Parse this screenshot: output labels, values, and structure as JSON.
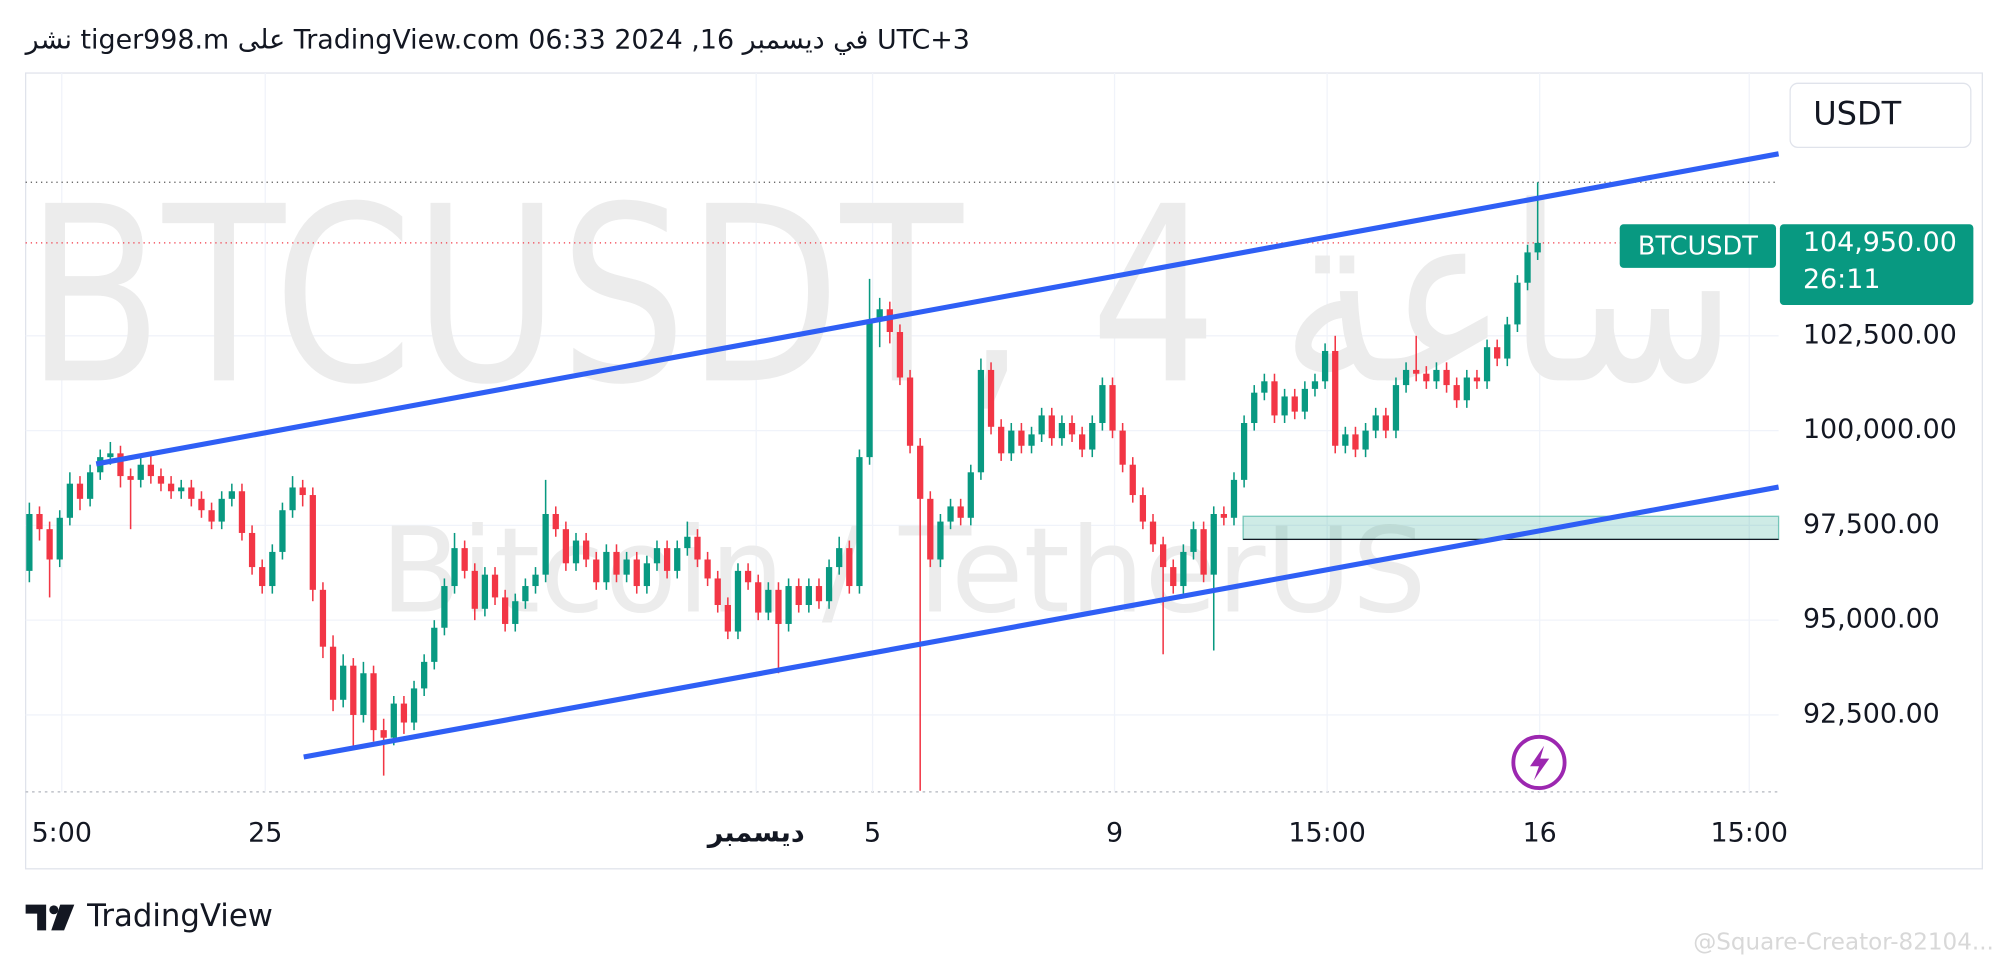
{
  "header": "نشر tiger998.m على TradingView.com في ديسمبر 16, 2024 06:33 UTC+3",
  "chart_data": {
    "type": "candlestick",
    "watermark_title": "BTCUSDT, 4 ساعة",
    "watermark_subtitle": "Bitcoin / TetherUS",
    "currency": "USDT",
    "symbol": "BTCUSDT",
    "price_label": "104,950.00",
    "countdown": "26:11",
    "up_color": "#089981",
    "down_color": "#f23645",
    "xlim": [
      -0.37,
      172.8
    ],
    "xticks": [
      {
        "value": 3.2,
        "label": "5:00"
      },
      {
        "value": 23.3,
        "label": "25"
      },
      {
        "value": 71.8,
        "label": "ديسمبر"
      },
      {
        "value": 83.3,
        "label": "5"
      },
      {
        "value": 107.2,
        "label": "9"
      },
      {
        "value": 128.2,
        "label": "15:00"
      },
      {
        "value": 149.2,
        "label": "16"
      },
      {
        "value": 169.9,
        "label": "15:00"
      }
    ],
    "ylim": [
      90470,
      109430
    ],
    "yticks": [
      {
        "value": 92500,
        "label": "92,500.00"
      },
      {
        "value": 95000,
        "label": "95,000.00"
      },
      {
        "value": 97500,
        "label": "97,500.00"
      },
      {
        "value": 100000,
        "label": "100,000.00"
      },
      {
        "value": 102500,
        "label": "102,500.00"
      }
    ],
    "grid": true,
    "trendlines": [
      {
        "x": [
          6.6,
          172.8
        ],
        "y": [
          99120,
          107300
        ],
        "color": "#2f5ff5"
      },
      {
        "x": [
          27.1,
          172.8
        ],
        "y": [
          91390,
          98510
        ],
        "color": "#2f5ff5"
      }
    ],
    "zone": {
      "x": [
        119.9,
        172.8
      ],
      "y": [
        97130,
        97740
      ],
      "color": "#089981"
    },
    "ohlc": [
      [
        96300,
        98100,
        96000,
        97800
      ],
      [
        97800,
        98000,
        97100,
        97400
      ],
      [
        97400,
        97600,
        95600,
        96600
      ],
      [
        96600,
        97900,
        96400,
        97700
      ],
      [
        97700,
        98900,
        97500,
        98600
      ],
      [
        98600,
        98800,
        97900,
        98200
      ],
      [
        98200,
        99100,
        98000,
        98900
      ],
      [
        98900,
        99500,
        98700,
        99300
      ],
      [
        99300,
        99700,
        99100,
        99400
      ],
      [
        99400,
        99600,
        98500,
        98800
      ],
      [
        98800,
        99000,
        97400,
        98700
      ],
      [
        98700,
        99300,
        98500,
        99100
      ],
      [
        99100,
        99400,
        98600,
        98800
      ],
      [
        98800,
        99000,
        98400,
        98600
      ],
      [
        98600,
        98800,
        98200,
        98400
      ],
      [
        98400,
        98700,
        98200,
        98500
      ],
      [
        98500,
        98700,
        98000,
        98200
      ],
      [
        98200,
        98400,
        97700,
        97900
      ],
      [
        97900,
        98100,
        97400,
        97600
      ],
      [
        97600,
        98400,
        97400,
        98200
      ],
      [
        98200,
        98600,
        98000,
        98400
      ],
      [
        98400,
        98600,
        97100,
        97300
      ],
      [
        97300,
        97500,
        96200,
        96400
      ],
      [
        96400,
        96600,
        95700,
        95900
      ],
      [
        95900,
        97000,
        95700,
        96800
      ],
      [
        96800,
        98100,
        96600,
        97900
      ],
      [
        97900,
        98800,
        97700,
        98500
      ],
      [
        98500,
        98700,
        98000,
        98300
      ],
      [
        98300,
        98500,
        95500,
        95800
      ],
      [
        95800,
        96000,
        94000,
        94300
      ],
      [
        94300,
        94600,
        92600,
        92900
      ],
      [
        92900,
        94100,
        92700,
        93800
      ],
      [
        93800,
        94000,
        91600,
        92500
      ],
      [
        92500,
        93900,
        92300,
        93600
      ],
      [
        93600,
        93800,
        91800,
        92100
      ],
      [
        92100,
        92400,
        90900,
        91900
      ],
      [
        91900,
        93000,
        91700,
        92800
      ],
      [
        92800,
        93000,
        92000,
        92300
      ],
      [
        92300,
        93400,
        92100,
        93200
      ],
      [
        93200,
        94100,
        93000,
        93900
      ],
      [
        93900,
        95000,
        93700,
        94800
      ],
      [
        94800,
        96100,
        94600,
        95900
      ],
      [
        95900,
        97300,
        95700,
        96900
      ],
      [
        96900,
        97100,
        96100,
        96300
      ],
      [
        96300,
        96500,
        95000,
        95300
      ],
      [
        95300,
        96400,
        95100,
        96200
      ],
      [
        96200,
        96400,
        95400,
        95600
      ],
      [
        95600,
        95800,
        94700,
        94900
      ],
      [
        94900,
        95700,
        94700,
        95500
      ],
      [
        95500,
        96100,
        95300,
        95900
      ],
      [
        95900,
        96400,
        95700,
        96200
      ],
      [
        96200,
        98700,
        96000,
        97800
      ],
      [
        97800,
        98000,
        97200,
        97400
      ],
      [
        97400,
        97600,
        96300,
        96500
      ],
      [
        96500,
        97300,
        96300,
        97100
      ],
      [
        97100,
        97300,
        96400,
        96600
      ],
      [
        96600,
        96800,
        95800,
        96000
      ],
      [
        96000,
        97000,
        95800,
        96800
      ],
      [
        96800,
        97000,
        96000,
        96200
      ],
      [
        96200,
        96800,
        96000,
        96600
      ],
      [
        96600,
        96800,
        95700,
        95900
      ],
      [
        95900,
        96700,
        95700,
        96500
      ],
      [
        96500,
        97100,
        96300,
        96900
      ],
      [
        96900,
        97100,
        96100,
        96300
      ],
      [
        96300,
        97100,
        96100,
        96900
      ],
      [
        96900,
        97600,
        96700,
        97200
      ],
      [
        97200,
        97400,
        96400,
        96600
      ],
      [
        96600,
        96800,
        95900,
        96100
      ],
      [
        96100,
        96300,
        95200,
        95400
      ],
      [
        95400,
        95600,
        94500,
        94700
      ],
      [
        94700,
        96500,
        94500,
        96300
      ],
      [
        96300,
        96500,
        95800,
        96000
      ],
      [
        96000,
        96200,
        95000,
        95200
      ],
      [
        95200,
        96000,
        95000,
        95800
      ],
      [
        95800,
        96000,
        93600,
        94900
      ],
      [
        94900,
        96100,
        94700,
        95900
      ],
      [
        95900,
        96100,
        95200,
        95400
      ],
      [
        95400,
        96100,
        95200,
        95900
      ],
      [
        95900,
        96100,
        95300,
        95500
      ],
      [
        95500,
        96600,
        95300,
        96400
      ],
      [
        96400,
        97200,
        96200,
        96900
      ],
      [
        96900,
        97100,
        95700,
        95900
      ],
      [
        95900,
        99500,
        95700,
        99300
      ],
      [
        99300,
        104000,
        99100,
        102900
      ],
      [
        102900,
        103500,
        102200,
        103200
      ],
      [
        103200,
        103400,
        102300,
        102600
      ],
      [
        102600,
        102800,
        101200,
        101400
      ],
      [
        101400,
        101600,
        99400,
        99600
      ],
      [
        99600,
        99800,
        90500,
        98200
      ],
      [
        98200,
        98400,
        96400,
        96600
      ],
      [
        96600,
        97800,
        96400,
        97600
      ],
      [
        97600,
        98200,
        97400,
        98000
      ],
      [
        98000,
        98200,
        97500,
        97700
      ],
      [
        97700,
        99100,
        97500,
        98900
      ],
      [
        98900,
        101900,
        98700,
        101600
      ],
      [
        101600,
        101800,
        99900,
        100100
      ],
      [
        100100,
        100300,
        99200,
        99400
      ],
      [
        99400,
        100200,
        99200,
        100000
      ],
      [
        100000,
        100200,
        99400,
        99600
      ],
      [
        99600,
        100100,
        99400,
        99900
      ],
      [
        99900,
        100600,
        99700,
        100400
      ],
      [
        100400,
        100600,
        99600,
        99800
      ],
      [
        99800,
        100400,
        99600,
        100200
      ],
      [
        100200,
        100400,
        99700,
        99900
      ],
      [
        99900,
        100100,
        99300,
        99500
      ],
      [
        99500,
        100400,
        99300,
        100200
      ],
      [
        100200,
        101400,
        100000,
        101200
      ],
      [
        101200,
        101400,
        99800,
        100000
      ],
      [
        100000,
        100200,
        98900,
        99100
      ],
      [
        99100,
        99300,
        98100,
        98300
      ],
      [
        98300,
        98500,
        97400,
        97600
      ],
      [
        97600,
        97800,
        96800,
        97000
      ],
      [
        97000,
        97200,
        94100,
        96400
      ],
      [
        96400,
        96600,
        95700,
        95900
      ],
      [
        95900,
        97000,
        95700,
        96800
      ],
      [
        96800,
        97600,
        96600,
        97400
      ],
      [
        97400,
        97600,
        96000,
        96200
      ],
      [
        96200,
        98000,
        94200,
        97800
      ],
      [
        97800,
        98000,
        97500,
        97700
      ],
      [
        97700,
        98900,
        97500,
        98700
      ],
      [
        98700,
        100400,
        98500,
        100200
      ],
      [
        100200,
        101200,
        100000,
        101000
      ],
      [
        101000,
        101500,
        100800,
        101300
      ],
      [
        101300,
        101500,
        100200,
        100400
      ],
      [
        100400,
        101100,
        100200,
        100900
      ],
      [
        100900,
        101100,
        100300,
        100500
      ],
      [
        100500,
        101300,
        100300,
        101100
      ],
      [
        101100,
        101500,
        100900,
        101300
      ],
      [
        101300,
        102300,
        101100,
        102100
      ],
      [
        102100,
        102500,
        99400,
        99600
      ],
      [
        99600,
        100100,
        99400,
        99900
      ],
      [
        99900,
        100100,
        99300,
        99500
      ],
      [
        99500,
        100200,
        99300,
        100000
      ],
      [
        100000,
        100600,
        99800,
        100400
      ],
      [
        100400,
        100600,
        99800,
        100000
      ],
      [
        100000,
        101400,
        99800,
        101200
      ],
      [
        101200,
        101800,
        101000,
        101600
      ],
      [
        101600,
        102500,
        101300,
        101500
      ],
      [
        101500,
        101700,
        101100,
        101300
      ],
      [
        101300,
        101800,
        101100,
        101600
      ],
      [
        101600,
        101800,
        101000,
        101200
      ],
      [
        101200,
        101400,
        100600,
        100800
      ],
      [
        100800,
        101600,
        100600,
        101400
      ],
      [
        101400,
        101600,
        101100,
        101300
      ],
      [
        101300,
        102400,
        101100,
        102200
      ],
      [
        102200,
        102400,
        101700,
        101900
      ],
      [
        101900,
        103000,
        101700,
        102800
      ],
      [
        102800,
        104100,
        102600,
        103900
      ],
      [
        103900,
        104900,
        103700,
        104700
      ],
      [
        104700,
        106550,
        104500,
        104950
      ]
    ]
  },
  "footer": {
    "brand": "TradingView",
    "credit": "@Square-Creator-82104..."
  }
}
